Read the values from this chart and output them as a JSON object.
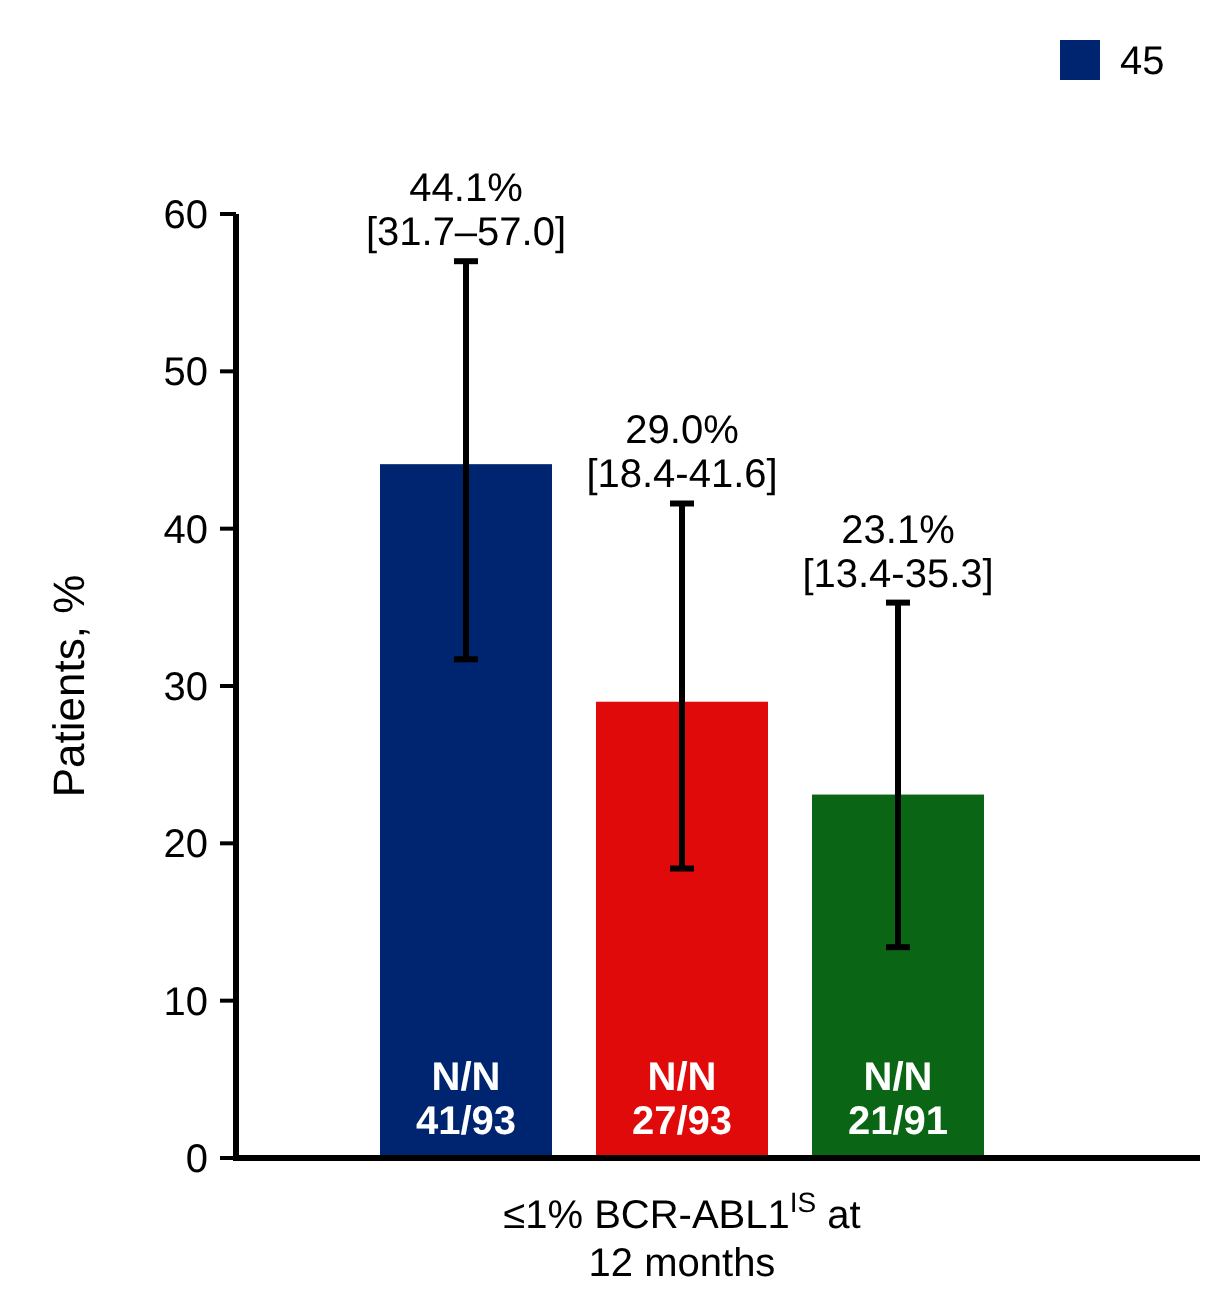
{
  "chart_data": {
    "type": "bar",
    "ylabel": "Patients, %",
    "categories": [
      "≤1% BCR-ABL1$^{IS}$ at 12 months"
    ],
    "series": [
      {
        "name": "45",
        "color": "#002570",
        "values": [
          44.1
        ],
        "errors": [
          [
            31.7,
            57.0
          ]
        ]
      },
      {
        "color": "#e00a0a",
        "values": [
          29.0
        ],
        "errors": [
          [
            18.4,
            41.6
          ]
        ]
      },
      {
        "color": "#0a6614",
        "values": [
          23.1
        ],
        "errors": [
          [
            13.4,
            35.3
          ]
        ]
      }
    ],
    "annotations": [
      "44.1%\n[31.7–57.0]",
      "29.0%\n[18.4-41.6]",
      "23.1%\n[13.4-35.3]",
      "N/N\n41/93",
      "N/N\n27/93",
      "N/N\n21/91"
    ],
    "ylim": [
      0,
      60
    ],
    "yticks": [
      0,
      10,
      20,
      30,
      40,
      50,
      60
    ],
    "grid": false,
    "legend": "top right"
  }
}
